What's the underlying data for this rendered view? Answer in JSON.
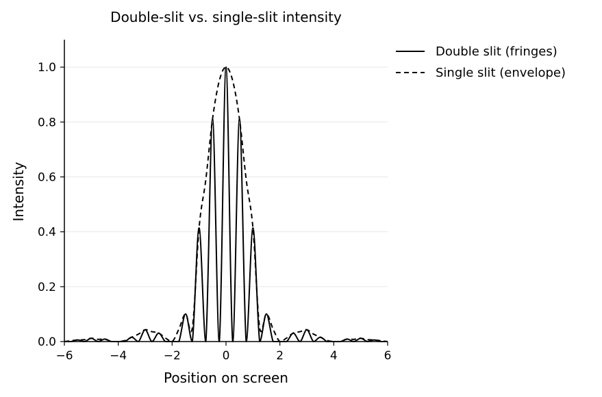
{
  "chart_data": {
    "type": "line",
    "title": "Double-slit vs. single-slit intensity",
    "xlabel": "Position on screen",
    "ylabel": "Intensity",
    "xlim": [
      -6,
      6
    ],
    "ylim": [
      0,
      1.1
    ],
    "xticks": [
      -6,
      -4,
      -2,
      0,
      2,
      4,
      6
    ],
    "xtick_labels": [
      "−6",
      "−4",
      "−2",
      "0",
      "2",
      "4",
      "6"
    ],
    "yticks": [
      0.0,
      0.2,
      0.4,
      0.6,
      0.8,
      1.0
    ],
    "ytick_labels": [
      "0.0",
      "0.2",
      "0.4",
      "0.6",
      "0.8",
      "1.0"
    ],
    "grid": "horizontal",
    "legend_position": "outside-top-right",
    "series": [
      {
        "name": "Double slit (fringes)",
        "style": "solid",
        "color": "#000000",
        "x": [
          -6.0,
          -5.75,
          -5.5,
          -5.25,
          -5.0,
          -4.75,
          -4.5,
          -4.25,
          -4.0,
          -3.75,
          -3.5,
          -3.25,
          -3.0,
          -2.75,
          -2.5,
          -2.25,
          -2.0,
          -1.75,
          -1.5,
          -1.25,
          -1.0,
          -0.75,
          -0.5,
          -0.25,
          0.0,
          0.25,
          0.5,
          0.75,
          1.0,
          1.25,
          1.5,
          1.75,
          2.0,
          2.25,
          2.5,
          2.75,
          3.0,
          3.25,
          3.5,
          3.75,
          4.0,
          4.25,
          4.5,
          4.75,
          5.0,
          5.25,
          5.5,
          5.75,
          6.0
        ],
        "y": [
          0.0,
          0.0,
          0.006,
          0.0,
          0.012,
          0.0,
          0.009,
          0.0,
          0.0,
          0.0,
          0.016,
          0.0,
          0.043,
          0.0,
          0.031,
          0.0,
          0.0,
          0.0,
          0.101,
          0.0,
          0.414,
          0.0,
          0.811,
          0.0,
          1.0,
          0.0,
          0.811,
          0.0,
          0.414,
          0.0,
          0.101,
          0.0,
          0.0,
          0.0,
          0.031,
          0.0,
          0.043,
          0.0,
          0.016,
          0.0,
          0.0,
          0.0,
          0.009,
          0.0,
          0.012,
          0.0,
          0.006,
          0.0,
          0.0
        ]
      },
      {
        "name": "Single slit (envelope)",
        "style": "dashed",
        "color": "#000000",
        "x": [
          -6.0,
          -5.75,
          -5.5,
          -5.25,
          -5.0,
          -4.75,
          -4.5,
          -4.25,
          -4.0,
          -3.75,
          -3.5,
          -3.25,
          -3.0,
          -2.75,
          -2.5,
          -2.25,
          -2.0,
          -1.75,
          -1.5,
          -1.25,
          -1.0,
          -0.75,
          -0.5,
          -0.25,
          0.0,
          0.25,
          0.5,
          0.75,
          1.0,
          1.25,
          1.5,
          1.75,
          2.0,
          2.25,
          2.5,
          2.75,
          3.0,
          3.25,
          3.5,
          3.75,
          4.0,
          4.25,
          4.5,
          4.75,
          5.0,
          5.25,
          5.5,
          5.75,
          6.0
        ],
        "y": [
          0.0,
          0.003,
          0.006,
          0.007,
          0.012,
          0.008,
          0.009,
          0.0,
          0.0,
          0.004,
          0.016,
          0.027,
          0.043,
          0.036,
          0.031,
          0.013,
          0.0,
          0.045,
          0.101,
          0.05,
          0.414,
          0.59,
          0.811,
          0.95,
          1.0,
          0.95,
          0.811,
          0.59,
          0.414,
          0.05,
          0.101,
          0.045,
          0.0,
          0.013,
          0.031,
          0.036,
          0.043,
          0.027,
          0.016,
          0.004,
          0.0,
          0.0,
          0.009,
          0.008,
          0.012,
          0.007,
          0.006,
          0.003,
          0.0
        ]
      }
    ]
  }
}
